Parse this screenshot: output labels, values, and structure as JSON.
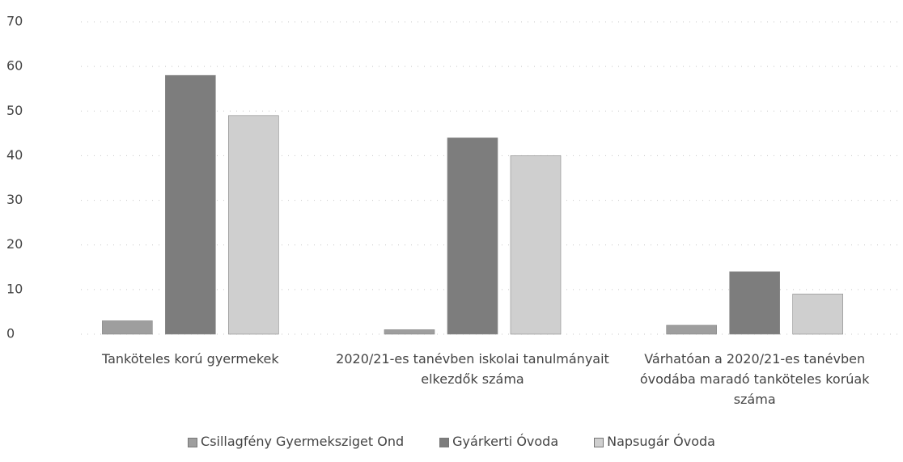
{
  "chart_data": {
    "type": "bar",
    "categories": [
      "Tanköteles korú gyermekek",
      "2020/21-es tanévben iskolai tanulmányait elkezdők száma",
      "Várhatóan a 2020/21-es tanévben óvodába maradó tanköteles korúak száma"
    ],
    "series": [
      {
        "name": "Csillagfény Gyermeksziget Ond",
        "color": "#9e9e9e",
        "values": [
          3,
          1,
          2
        ]
      },
      {
        "name": "Gyárkerti Óvoda",
        "color": "#7d7d7d",
        "values": [
          58,
          44,
          14
        ]
      },
      {
        "name": "Napsugár Óvoda",
        "color": "#cfcfcf",
        "values": [
          49,
          40,
          9
        ]
      }
    ],
    "ylim": [
      0,
      70
    ],
    "yticks": [
      0,
      10,
      20,
      30,
      40,
      50,
      60,
      70
    ],
    "grid": true,
    "legend": "bottom"
  }
}
